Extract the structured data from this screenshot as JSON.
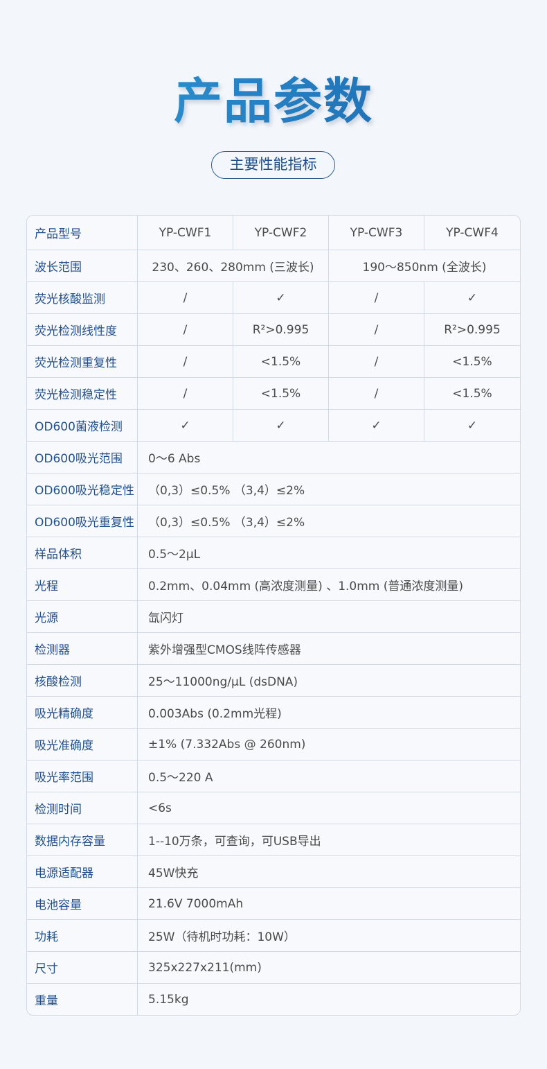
{
  "title": "产品参数",
  "subtitle": "主要性能指标",
  "header": {
    "label": "产品型号",
    "models": [
      "YP-CWF1",
      "YP-CWF2",
      "YP-CWF3",
      "YP-CWF4"
    ]
  },
  "wavelength": {
    "label": "波长范围",
    "left": "230、260、280mm (三波长)",
    "right": "190～850nm (全波长)"
  },
  "grid_rows": [
    {
      "label": "荧光核酸监测",
      "values": [
        "/",
        "✓",
        "/",
        "✓"
      ]
    },
    {
      "label": "荧光检测线性度",
      "values": [
        "/",
        "R²>0.995",
        "/",
        "R²>0.995"
      ]
    },
    {
      "label": "荧光检测重复性",
      "values": [
        "/",
        "<1.5%",
        "/",
        "<1.5%"
      ]
    },
    {
      "label": "荧光检测稳定性",
      "values": [
        "/",
        "<1.5%",
        "/",
        "<1.5%"
      ]
    },
    {
      "label": "OD600菌液检测",
      "values": [
        "✓",
        "✓",
        "✓",
        "✓"
      ]
    }
  ],
  "span_rows": [
    {
      "label": "OD600吸光范围",
      "value": "0～6 Abs"
    },
    {
      "label": "OD600吸光稳定性",
      "value": "（0,3）≤0.5%  （3,4）≤2%"
    },
    {
      "label": "OD600吸光重复性",
      "value": "（0,3）≤0.5%  （3,4）≤2%"
    },
    {
      "label": "样品体积",
      "value": "0.5～2μL"
    },
    {
      "label": "光程",
      "value": "0.2mm、0.04mm (高浓度测量) 、1.0mm (普通浓度测量)"
    },
    {
      "label": "光源",
      "value": "氙闪灯"
    },
    {
      "label": "检测器",
      "value": "紫外增强型CMOS线阵传感器"
    },
    {
      "label": "核酸检测",
      "value": "25～11000ng/μL (dsDNA)"
    },
    {
      "label": "吸光精确度",
      "value": "0.003Abs (0.2mm光程)"
    },
    {
      "label": "吸光准确度",
      "value": "±1% (7.332Abs @ 260nm)"
    },
    {
      "label": "吸光率范围",
      "value": "0.5～220 A"
    },
    {
      "label": "检测时间",
      "value": "<6s"
    },
    {
      "label": "数据内存容量",
      "value": "1--10万条，可查询，可USB导出"
    },
    {
      "label": "电源适配器",
      "value": "45W快充"
    },
    {
      "label": "电池容量",
      "value": "21.6V 7000mAh"
    },
    {
      "label": "功耗",
      "value": "25W（待机时功耗：10W）"
    },
    {
      "label": "尺寸",
      "value": "325x227x211(mm)"
    },
    {
      "label": "重量",
      "value": "5.15kg"
    }
  ]
}
